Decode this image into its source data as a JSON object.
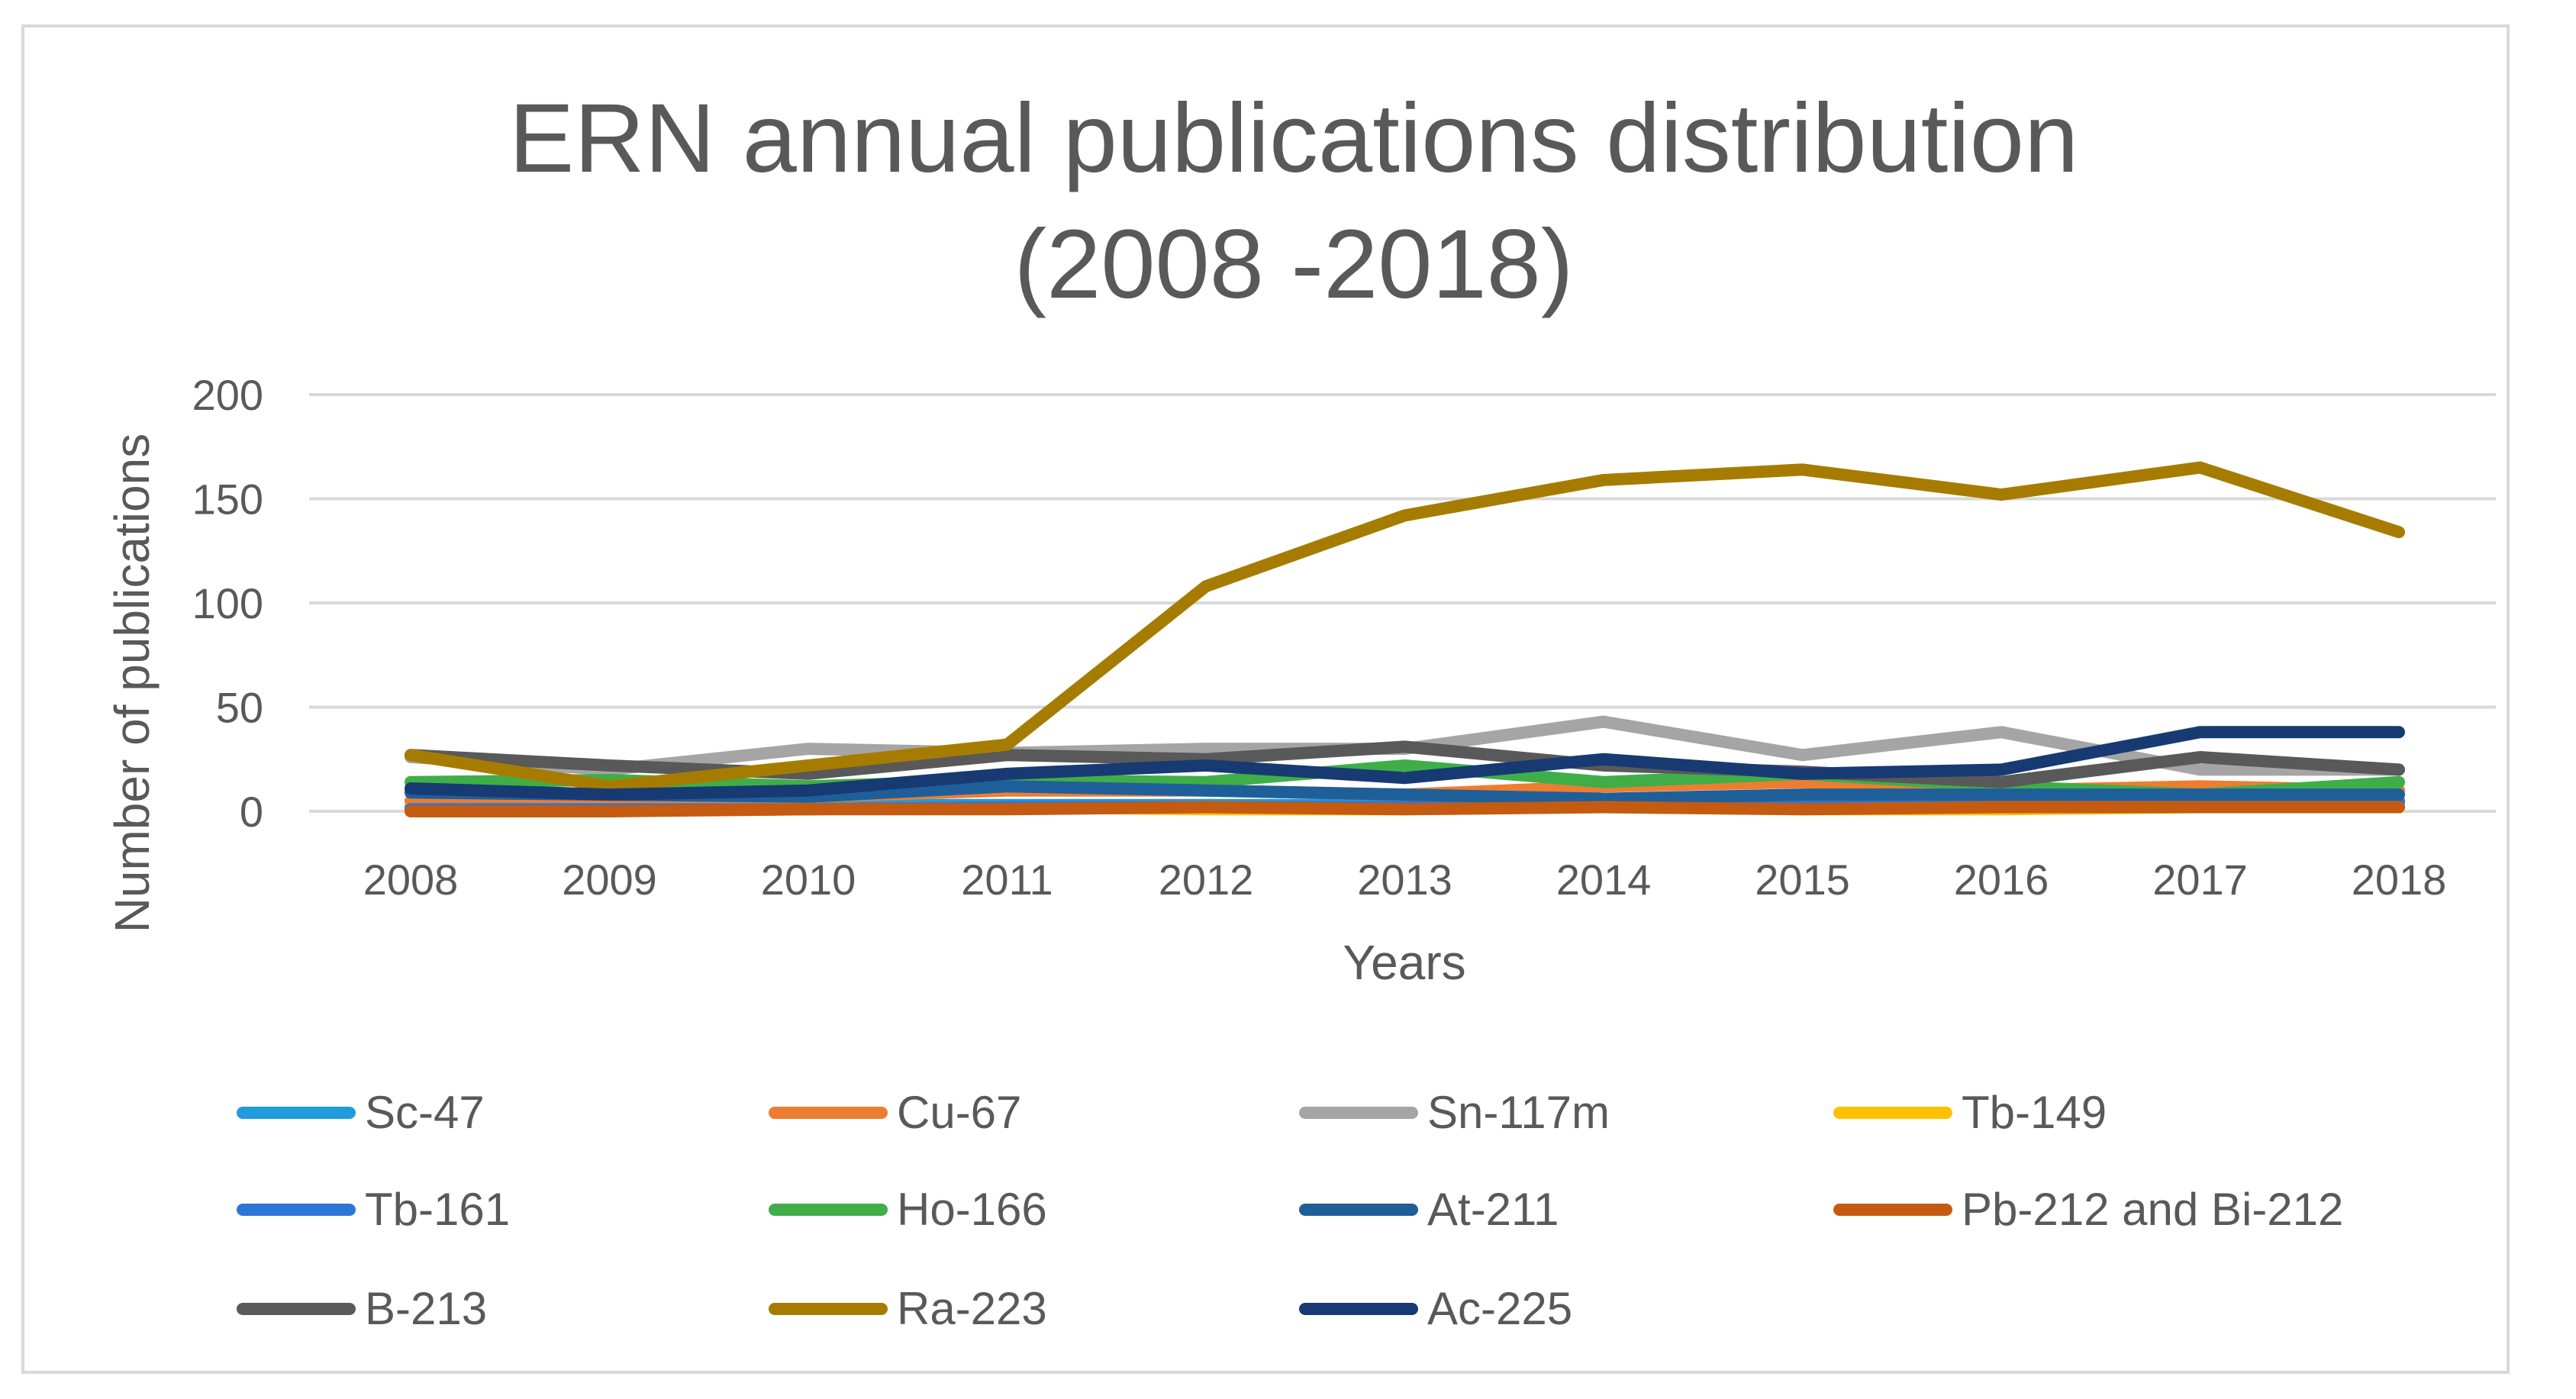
{
  "chart_data": {
    "type": "line",
    "title_line1": "ERN annual publications distribution",
    "title_line2": "(2008 -2018)",
    "xlabel": "Years",
    "ylabel": "Number of publications",
    "ylim": [
      0,
      200
    ],
    "yticks": [
      0,
      50,
      100,
      150,
      200
    ],
    "grid": true,
    "legend_position": "bottom",
    "categories": [
      "2008",
      "2009",
      "2010",
      "2011",
      "2012",
      "2013",
      "2014",
      "2015",
      "2016",
      "2017",
      "2018"
    ],
    "series": [
      {
        "name": "Sc-47",
        "color": "#1f9bde",
        "values": [
          2,
          2,
          3,
          3,
          3,
          3,
          4,
          4,
          3,
          4,
          4
        ]
      },
      {
        "name": "Cu-67",
        "color": "#ed7d31",
        "values": [
          5,
          6,
          7,
          10,
          10,
          8,
          12,
          14,
          10,
          12,
          10
        ]
      },
      {
        "name": "Sn-117m",
        "color": "#a5a5a5",
        "values": [
          26,
          20,
          30,
          28,
          30,
          30,
          43,
          27,
          38,
          20,
          20
        ]
      },
      {
        "name": "Tb-149",
        "color": "#ffc000",
        "values": [
          1,
          1,
          1,
          2,
          1,
          1,
          2,
          1,
          1,
          2,
          2
        ]
      },
      {
        "name": "Tb-161",
        "color": "#2e75d6",
        "values": [
          1,
          1,
          1,
          2,
          2,
          2,
          3,
          3,
          3,
          4,
          5
        ]
      },
      {
        "name": "Ho-166",
        "color": "#3fae49",
        "values": [
          14,
          15,
          12,
          15,
          14,
          22,
          14,
          18,
          12,
          8,
          14
        ]
      },
      {
        "name": "At-211",
        "color": "#1f5f99",
        "values": [
          9,
          8,
          7,
          12,
          10,
          8,
          6,
          8,
          8,
          8,
          8
        ]
      },
      {
        "name": "Pb-212 and Bi-212",
        "color": "#c55a11",
        "values": [
          0,
          0,
          1,
          1,
          2,
          1,
          2,
          1,
          2,
          2,
          2
        ]
      },
      {
        "name": "B-213",
        "color": "#595959",
        "values": [
          27,
          22,
          18,
          27,
          25,
          31,
          22,
          19,
          14,
          26,
          20
        ]
      },
      {
        "name": "Ra-223",
        "color": "#a67c00",
        "values": [
          27,
          12,
          22,
          32,
          108,
          142,
          159,
          164,
          152,
          165,
          134
        ]
      },
      {
        "name": "Ac-225",
        "color": "#183a73",
        "values": [
          11,
          8,
          10,
          18,
          22,
          16,
          25,
          18,
          20,
          38,
          38
        ]
      }
    ]
  }
}
